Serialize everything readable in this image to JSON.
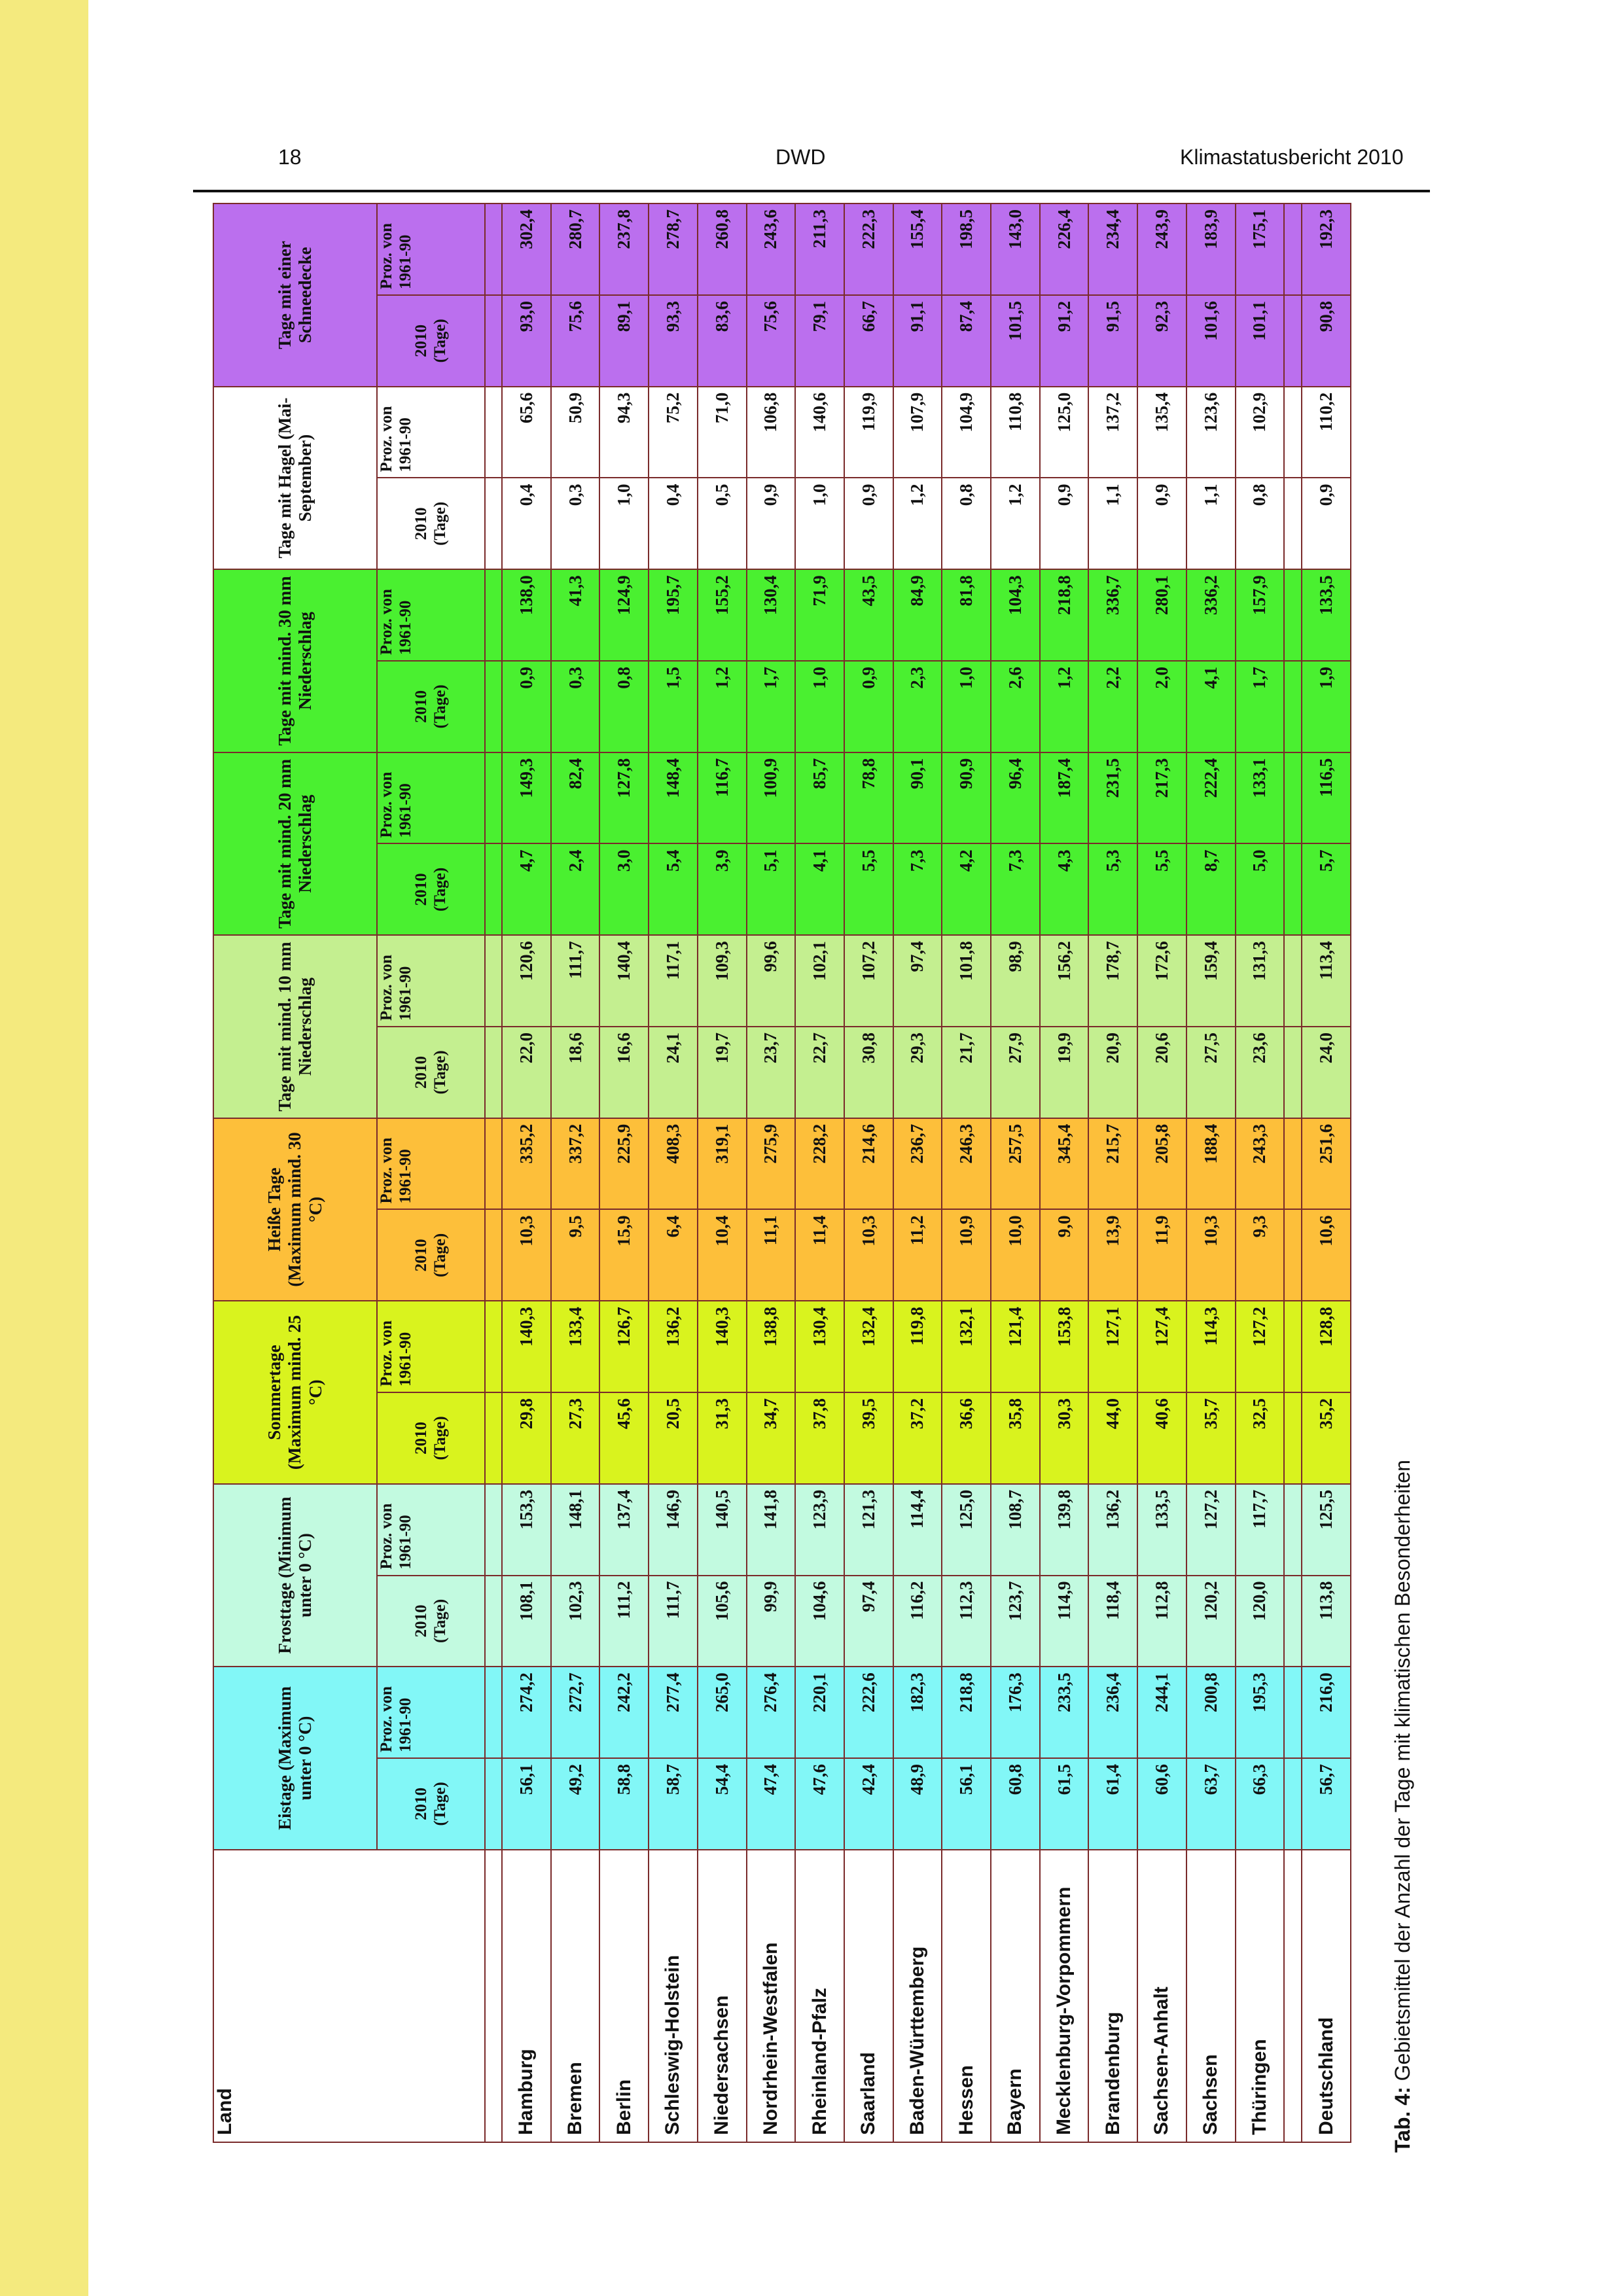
{
  "header": {
    "page_number": "18",
    "publisher": "DWD",
    "report_title": "Klimastatusbericht 2010"
  },
  "caption": {
    "label": "Tab. 4:",
    "text": " Gebietsmittel der Anzahl der Tage mit klimatischen Besonderheiten"
  },
  "table": {
    "land_header": "Land",
    "groups": [
      {
        "title": "Eistage (Maximum unter 0 °C)",
        "color": "#82f7f7"
      },
      {
        "title": "Frosttage (Minimum unter 0 °C)",
        "color": "#c2fae0"
      },
      {
        "title": "Sommertage (Maximum mind. 25 °C)",
        "color": "#d9f31e"
      },
      {
        "title": "Heiße Tage (Maximum mind. 30 °C)",
        "color": "#fdbf3a"
      },
      {
        "title": "Tage mit mind. 10 mm Niederschlag",
        "color": "#c4ef90"
      },
      {
        "title": "Tage mit mind. 20 mm Niederschlag",
        "color": "#4af030"
      },
      {
        "title": "Tage mit mind. 30 mm Niederschlag",
        "color": "#4af030"
      },
      {
        "title": "Tage mit Hagel (Mai-September)",
        "color": "#ffffff"
      },
      {
        "title": "Tage mit einer Schneedecke",
        "color": "#bb6fee"
      }
    ],
    "sub_headers": {
      "year": "2010 (Tage)",
      "pct_a": "Proz. von 1961-90",
      "pct_b": "Proz. von 1961-90"
    },
    "rows": [
      {
        "land": "Hamburg",
        "values": [
          "56,1",
          "274,2",
          "108,1",
          "153,3",
          "29,8",
          "140,3",
          "10,3",
          "335,2",
          "22,0",
          "120,6",
          "4,7",
          "149,3",
          "0,9",
          "138,0",
          "0,4",
          "65,6",
          "93,0",
          "302,4"
        ]
      },
      {
        "land": "Bremen",
        "values": [
          "49,2",
          "272,7",
          "102,3",
          "148,1",
          "27,3",
          "133,4",
          "9,5",
          "337,2",
          "18,6",
          "111,7",
          "2,4",
          "82,4",
          "0,3",
          "41,3",
          "0,3",
          "50,9",
          "75,6",
          "280,7"
        ]
      },
      {
        "land": "Berlin",
        "values": [
          "58,8",
          "242,2",
          "111,2",
          "137,4",
          "45,6",
          "126,7",
          "15,9",
          "225,9",
          "16,6",
          "140,4",
          "3,0",
          "127,8",
          "0,8",
          "124,9",
          "1,0",
          "94,3",
          "89,1",
          "237,8"
        ]
      },
      {
        "land": "Schleswig-Holstein",
        "values": [
          "58,7",
          "277,4",
          "111,7",
          "146,9",
          "20,5",
          "136,2",
          "6,4",
          "408,3",
          "24,1",
          "117,1",
          "5,4",
          "148,4",
          "1,5",
          "195,7",
          "0,4",
          "75,2",
          "93,3",
          "278,7"
        ]
      },
      {
        "land": "Niedersachsen",
        "values": [
          "54,4",
          "265,0",
          "105,6",
          "140,5",
          "31,3",
          "140,3",
          "10,4",
          "319,1",
          "19,7",
          "109,3",
          "3,9",
          "116,7",
          "1,2",
          "155,2",
          "0,5",
          "71,0",
          "83,6",
          "260,8"
        ]
      },
      {
        "land": "Nordrhein-Westfalen",
        "values": [
          "47,4",
          "276,4",
          "99,9",
          "141,8",
          "34,7",
          "138,8",
          "11,1",
          "275,9",
          "23,7",
          "99,6",
          "5,1",
          "100,9",
          "1,7",
          "130,4",
          "0,9",
          "106,8",
          "75,6",
          "243,6"
        ]
      },
      {
        "land": "Rheinland-Pfalz",
        "values": [
          "47,6",
          "220,1",
          "104,6",
          "123,9",
          "37,8",
          "130,4",
          "11,4",
          "228,2",
          "22,7",
          "102,1",
          "4,1",
          "85,7",
          "1,0",
          "71,9",
          "1,0",
          "140,6",
          "79,1",
          "211,3"
        ]
      },
      {
        "land": "Saarland",
        "values": [
          "42,4",
          "222,6",
          "97,4",
          "121,3",
          "39,5",
          "132,4",
          "10,3",
          "214,6",
          "30,8",
          "107,2",
          "5,5",
          "78,8",
          "0,9",
          "43,5",
          "0,9",
          "119,9",
          "66,7",
          "222,3"
        ]
      },
      {
        "land": "Baden-Württemberg",
        "values": [
          "48,9",
          "182,3",
          "116,2",
          "114,4",
          "37,2",
          "119,8",
          "11,2",
          "236,7",
          "29,3",
          "97,4",
          "7,3",
          "90,1",
          "2,3",
          "84,9",
          "1,2",
          "107,9",
          "91,1",
          "155,4"
        ]
      },
      {
        "land": "Hessen",
        "values": [
          "56,1",
          "218,8",
          "112,3",
          "125,0",
          "36,6",
          "132,1",
          "10,9",
          "246,3",
          "21,7",
          "101,8",
          "4,2",
          "90,9",
          "1,0",
          "81,8",
          "0,8",
          "104,9",
          "87,4",
          "198,5"
        ]
      },
      {
        "land": "Bayern",
        "values": [
          "60,8",
          "176,3",
          "123,7",
          "108,7",
          "35,8",
          "121,4",
          "10,0",
          "257,5",
          "27,9",
          "98,9",
          "7,3",
          "96,4",
          "2,6",
          "104,3",
          "1,2",
          "110,8",
          "101,5",
          "143,0"
        ]
      },
      {
        "land": "Mecklenburg-Vorpommern",
        "values": [
          "61,5",
          "233,5",
          "114,9",
          "139,8",
          "30,3",
          "153,8",
          "9,0",
          "345,4",
          "19,9",
          "156,2",
          "4,3",
          "187,4",
          "1,2",
          "218,8",
          "0,9",
          "125,0",
          "91,2",
          "226,4"
        ]
      },
      {
        "land": "Brandenburg",
        "values": [
          "61,4",
          "236,4",
          "118,4",
          "136,2",
          "44,0",
          "127,1",
          "13,9",
          "215,7",
          "20,9",
          "178,7",
          "5,3",
          "231,5",
          "2,2",
          "336,7",
          "1,1",
          "137,2",
          "91,5",
          "234,4"
        ]
      },
      {
        "land": "Sachsen-Anhalt",
        "values": [
          "60,6",
          "244,1",
          "112,8",
          "133,5",
          "40,6",
          "127,4",
          "11,9",
          "205,8",
          "20,6",
          "172,6",
          "5,5",
          "217,3",
          "2,0",
          "280,1",
          "0,9",
          "135,4",
          "92,3",
          "243,9"
        ]
      },
      {
        "land": "Sachsen",
        "values": [
          "63,7",
          "200,8",
          "120,2",
          "127,2",
          "35,7",
          "114,3",
          "10,3",
          "188,4",
          "27,5",
          "159,4",
          "8,7",
          "222,4",
          "4,1",
          "336,2",
          "1,1",
          "123,6",
          "101,6",
          "183,9"
        ]
      },
      {
        "land": "Thüringen",
        "values": [
          "66,3",
          "195,3",
          "120,0",
          "117,7",
          "32,5",
          "127,2",
          "9,3",
          "243,3",
          "23,6",
          "131,3",
          "5,0",
          "133,1",
          "1,7",
          "157,9",
          "0,8",
          "102,9",
          "101,1",
          "175,1"
        ]
      }
    ],
    "total_row": {
      "land": "Deutschland",
      "values": [
        "56,7",
        "216,0",
        "113,8",
        "125,5",
        "35,2",
        "128,8",
        "10,6",
        "251,6",
        "24,0",
        "113,4",
        "5,7",
        "116,5",
        "1,9",
        "133,5",
        "0,9",
        "110,2",
        "90,8",
        "192,3"
      ]
    }
  }
}
